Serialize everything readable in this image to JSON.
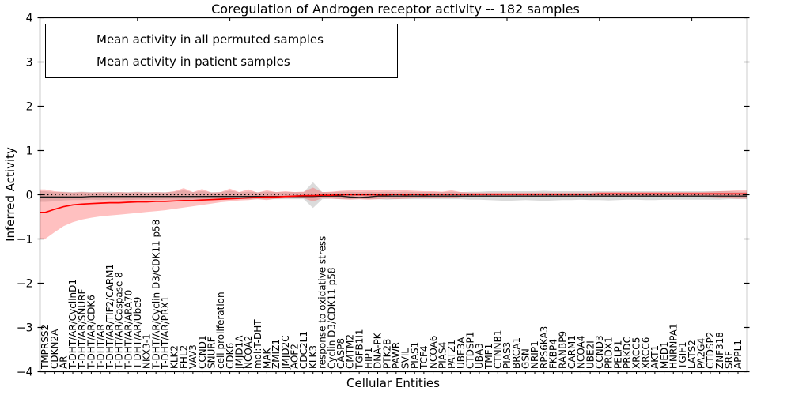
{
  "title": "Coregulation of Androgen receptor activity -- 182 samples",
  "legend": {
    "items": [
      {
        "label": "Mean activity in all permuted samples",
        "color": "#000000"
      },
      {
        "label": "Mean activity in patient samples",
        "color": "#ff0000"
      }
    ]
  },
  "colors": {
    "permuted_line": "#1a1a1a",
    "patient_line": "#ff0000",
    "permuted_band": "#aaaaaa",
    "patient_band": "#ff4040",
    "zero_line": "#000000",
    "axis": "#000000"
  },
  "chart_data": {
    "type": "line",
    "title": "Coregulation of Androgen receptor activity -- 182 samples",
    "xlabel": "Cellular Entities",
    "ylabel": "Inferred Activity",
    "ylim": [
      -4,
      4
    ],
    "yticks": [
      4,
      3,
      2,
      1,
      0,
      -1,
      -2,
      -3,
      -4
    ],
    "ytick_labels": [
      "4",
      "3",
      "2",
      "1",
      "0",
      "−1",
      "−2",
      "−3",
      "−4"
    ],
    "grid": false,
    "legend_position": "upper left",
    "zero_reference_line": 0,
    "categories": [
      "TMPRSS2",
      "CDKN2A",
      "AR",
      "T-DHT/AR/CyclinD1",
      "T-DHT/AR/SNURF",
      "T-DHT/AR/CDK6",
      "T-DHT/AR",
      "T-DHT/AR/TIF2/CARM1",
      "T-DHT/AR/Caspase 8",
      "T-DHT/AR/ARA70",
      "T-DHT/AR/Ubc9",
      "NKX3-1",
      "T-DHT/AR/Cyclin D3/CDK11 p58",
      "T-DHT/AR/PRX1",
      "KLK2",
      "FHL2",
      "VAV3",
      "CCND1",
      "SNURF",
      "cell proliferation",
      "CDK6",
      "JMJD1A",
      "NCOA2",
      "mol:T-DHT",
      "MAK",
      "ZMIZ1",
      "JMJD2C",
      "AOF2",
      "CDC2L1",
      "KLK3",
      "response to oxidative stress",
      "Cyclin D3/CDK11 p58",
      "CASP8",
      "CMTM2",
      "TGFB1I1",
      "HIP1",
      "DNA-PK",
      "PTK2B",
      "PAWR",
      "SVIL",
      "PIAS1",
      "TCF4",
      "NCOA6",
      "PIAS4",
      "PATZ1",
      "UBE3A",
      "CTDSP1",
      "UBA3",
      "TMF1",
      "CTNNB1",
      "PIAS3",
      "BRCA1",
      "GSN",
      "NRIP1",
      "RPS6KA3",
      "FKBP4",
      "RANBP9",
      "CARM1",
      "NCOA4",
      "UBE2I",
      "CCND3",
      "PRDX1",
      "PELP1",
      "PRKDC",
      "XRCC5",
      "XRCC6",
      "AKT1",
      "MED1",
      "HNRNPA1",
      "TGIF1",
      "LATS2",
      "PA2G4",
      "CTDSP2",
      "ZNF318",
      "SRF",
      "APPL1"
    ],
    "series": [
      {
        "name": "Mean activity in all permuted samples",
        "color": "#1a1a1a",
        "values": [
          -0.05,
          -0.05,
          -0.05,
          -0.05,
          -0.05,
          -0.04,
          -0.04,
          -0.04,
          -0.04,
          -0.04,
          -0.04,
          -0.04,
          -0.04,
          -0.04,
          -0.04,
          -0.04,
          -0.04,
          -0.04,
          -0.04,
          -0.04,
          -0.04,
          -0.04,
          -0.04,
          -0.04,
          -0.04,
          -0.04,
          -0.04,
          -0.04,
          -0.04,
          -0.04,
          -0.03,
          -0.03,
          -0.03,
          -0.05,
          -0.06,
          -0.05,
          -0.03,
          -0.03,
          -0.03,
          -0.03,
          -0.03,
          -0.03,
          -0.03,
          -0.03,
          -0.03,
          -0.03,
          -0.03,
          -0.03,
          -0.03,
          -0.03,
          -0.03,
          -0.03,
          -0.03,
          -0.03,
          -0.03,
          -0.03,
          -0.03,
          -0.03,
          -0.03,
          -0.03,
          -0.03,
          -0.03,
          -0.03,
          -0.03,
          -0.03,
          -0.03,
          -0.03,
          -0.03,
          -0.03,
          -0.03,
          -0.03,
          -0.03,
          -0.03,
          -0.03,
          -0.03,
          -0.03
        ],
        "band_lo": [
          -0.16,
          -0.15,
          -0.13,
          -0.12,
          -0.12,
          -0.11,
          -0.12,
          -0.11,
          -0.11,
          -0.12,
          -0.11,
          -0.11,
          -0.12,
          -0.11,
          -0.11,
          -0.12,
          -0.11,
          -0.11,
          -0.11,
          -0.1,
          -0.11,
          -0.1,
          -0.1,
          -0.1,
          -0.1,
          -0.1,
          -0.1,
          -0.1,
          -0.1,
          -0.3,
          -0.1,
          -0.09,
          -0.1,
          -0.1,
          -0.1,
          -0.1,
          -0.1,
          -0.11,
          -0.1,
          -0.1,
          -0.1,
          -0.1,
          -0.1,
          -0.1,
          -0.1,
          -0.1,
          -0.11,
          -0.11,
          -0.12,
          -0.13,
          -0.14,
          -0.13,
          -0.12,
          -0.13,
          -0.14,
          -0.13,
          -0.12,
          -0.12,
          -0.11,
          -0.12,
          -0.12,
          -0.13,
          -0.12,
          -0.11,
          -0.11,
          -0.12,
          -0.12,
          -0.11,
          -0.11,
          -0.11,
          -0.11,
          -0.11,
          -0.11,
          -0.11,
          -0.1,
          -0.1
        ],
        "band_hi": [
          0.08,
          0.06,
          0.07,
          0.06,
          0.07,
          0.06,
          0.06,
          0.07,
          0.06,
          0.06,
          0.07,
          0.06,
          0.06,
          0.06,
          0.07,
          0.1,
          0.06,
          0.08,
          0.06,
          0.06,
          0.09,
          0.06,
          0.07,
          0.06,
          0.07,
          0.06,
          0.06,
          0.06,
          0.06,
          0.28,
          0.06,
          0.06,
          0.07,
          0.07,
          0.06,
          0.07,
          0.06,
          0.07,
          0.06,
          0.07,
          0.06,
          0.06,
          0.06,
          0.06,
          0.07,
          0.06,
          0.07,
          0.07,
          0.08,
          0.08,
          0.08,
          0.08,
          0.08,
          0.08,
          0.09,
          0.08,
          0.08,
          0.08,
          0.08,
          0.08,
          0.08,
          0.08,
          0.08,
          0.08,
          0.08,
          0.08,
          0.08,
          0.08,
          0.08,
          0.08,
          0.08,
          0.08,
          0.08,
          0.08,
          0.08,
          0.07
        ]
      },
      {
        "name": "Mean activity in patient samples",
        "color": "#ff0000",
        "values": [
          -0.4,
          -0.33,
          -0.27,
          -0.23,
          -0.21,
          -0.2,
          -0.19,
          -0.18,
          -0.18,
          -0.17,
          -0.16,
          -0.16,
          -0.15,
          -0.15,
          -0.14,
          -0.13,
          -0.13,
          -0.12,
          -0.11,
          -0.1,
          -0.09,
          -0.08,
          -0.07,
          -0.06,
          -0.05,
          -0.05,
          -0.04,
          -0.03,
          -0.02,
          -0.02,
          -0.01,
          -0.01,
          0.0,
          0.0,
          0.0,
          0.0,
          0.0,
          0.0,
          0.01,
          0.0,
          0.01,
          0.0,
          0.01,
          0.01,
          0.01,
          0.01,
          0.01,
          0.01,
          0.01,
          0.01,
          0.01,
          0.01,
          0.01,
          0.01,
          0.01,
          0.01,
          0.01,
          0.01,
          0.01,
          0.01,
          0.02,
          0.02,
          0.02,
          0.02,
          0.02,
          0.02,
          0.02,
          0.02,
          0.02,
          0.02,
          0.02,
          0.02,
          0.02,
          0.02,
          0.02,
          0.02
        ],
        "band_lo": [
          -1.0,
          -0.85,
          -0.71,
          -0.62,
          -0.56,
          -0.52,
          -0.49,
          -0.47,
          -0.45,
          -0.43,
          -0.41,
          -0.39,
          -0.37,
          -0.35,
          -0.32,
          -0.29,
          -0.26,
          -0.23,
          -0.2,
          -0.17,
          -0.15,
          -0.13,
          -0.12,
          -0.1,
          -0.12,
          -0.09,
          -0.08,
          -0.08,
          -0.08,
          -0.15,
          -0.08,
          -0.09,
          -0.1,
          -0.11,
          -0.1,
          -0.11,
          -0.1,
          -0.09,
          -0.1,
          -0.09,
          -0.08,
          -0.08,
          -0.07,
          -0.06,
          -0.08,
          -0.05,
          -0.04,
          -0.04,
          -0.04,
          -0.04,
          -0.04,
          -0.04,
          -0.04,
          -0.04,
          -0.04,
          -0.04,
          -0.04,
          -0.04,
          -0.04,
          -0.04,
          -0.04,
          -0.04,
          -0.04,
          -0.04,
          -0.04,
          -0.04,
          -0.04,
          -0.04,
          -0.04,
          -0.04,
          -0.04,
          -0.04,
          -0.05,
          -0.06,
          -0.08,
          -0.09
        ],
        "band_hi": [
          0.12,
          0.08,
          0.06,
          0.05,
          0.06,
          0.05,
          0.06,
          0.05,
          0.06,
          0.05,
          0.06,
          0.05,
          0.06,
          0.05,
          0.08,
          0.15,
          0.06,
          0.13,
          0.05,
          0.06,
          0.14,
          0.06,
          0.12,
          0.05,
          0.1,
          0.06,
          0.08,
          0.06,
          0.07,
          0.16,
          0.06,
          0.07,
          0.09,
          0.1,
          0.1,
          0.11,
          0.1,
          0.1,
          0.11,
          0.1,
          0.09,
          0.08,
          0.08,
          0.07,
          0.1,
          0.06,
          0.05,
          0.05,
          0.05,
          0.05,
          0.05,
          0.05,
          0.05,
          0.05,
          0.05,
          0.05,
          0.05,
          0.05,
          0.05,
          0.05,
          0.06,
          0.06,
          0.06,
          0.06,
          0.06,
          0.06,
          0.06,
          0.06,
          0.06,
          0.06,
          0.06,
          0.06,
          0.07,
          0.08,
          0.09,
          0.1
        ]
      }
    ]
  }
}
